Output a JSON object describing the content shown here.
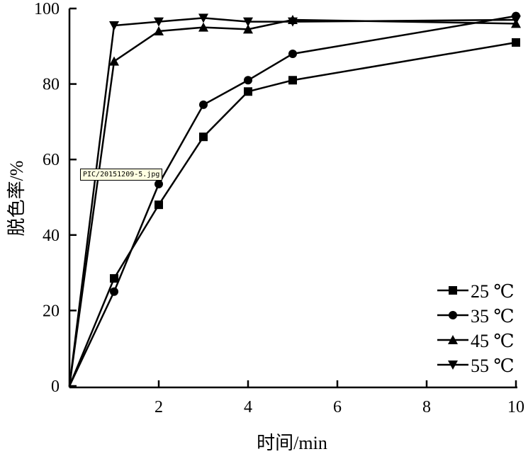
{
  "chart_data": {
    "type": "line",
    "title": "",
    "xlabel": "时间/min",
    "ylabel": "脱色率/%",
    "xlim": [
      0,
      10
    ],
    "ylim": [
      0,
      100
    ],
    "x_ticks": [
      2,
      4,
      6,
      8,
      10
    ],
    "y_ticks": [
      0,
      20,
      40,
      60,
      80,
      100
    ],
    "grid": false,
    "legend_placement": "bottom-right",
    "x": [
      0,
      1,
      2,
      3,
      4,
      5,
      10
    ],
    "series": [
      {
        "name": "25 ℃",
        "marker": "square",
        "values": [
          0,
          28.5,
          48,
          66,
          78,
          81,
          91
        ]
      },
      {
        "name": "35 ℃",
        "marker": "circle",
        "values": [
          0,
          25,
          53.5,
          74.5,
          81,
          88,
          98
        ]
      },
      {
        "name": "45 ℃",
        "marker": "triangle-up",
        "values": [
          0,
          86,
          94,
          95,
          94.5,
          97,
          96
        ]
      },
      {
        "name": "55 ℃",
        "marker": "triangle-down",
        "values": [
          0,
          95.5,
          96.5,
          97.5,
          96.5,
          96.5,
          97
        ]
      }
    ],
    "color": "#000000"
  },
  "tooltip": {
    "text": "PIC/20151209-5.jpg"
  }
}
